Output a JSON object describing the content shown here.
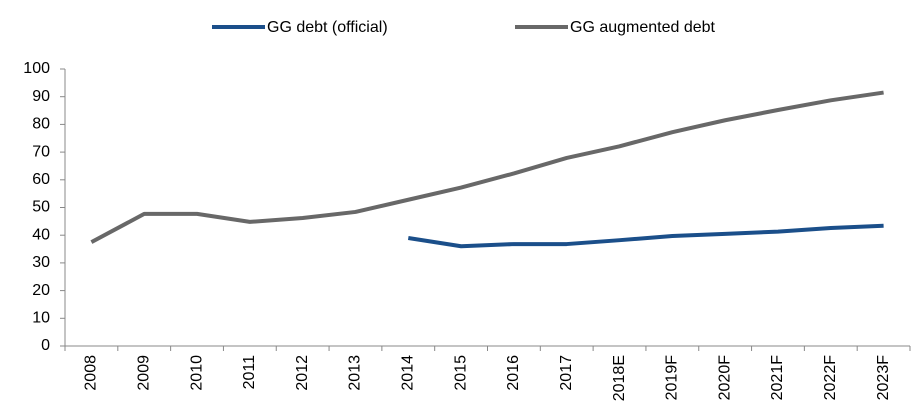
{
  "chart_data": {
    "type": "line",
    "categories": [
      "2008",
      "2009",
      "2010",
      "2011",
      "2012",
      "2013",
      "2014",
      "2015",
      "2016",
      "2017",
      "2018E",
      "2019F",
      "2020F",
      "2021F",
      "2022F",
      "2023F"
    ],
    "series": [
      {
        "name": "GG debt (official)",
        "color": "#1b4f8a",
        "values": [
          null,
          null,
          null,
          null,
          null,
          null,
          39,
          36,
          36.8,
          36.8,
          38.2,
          39.7,
          40.5,
          41.3,
          42.6,
          43.4
        ]
      },
      {
        "name": "GG augmented debt",
        "color": "#686868",
        "values": [
          37.5,
          47.7,
          47.7,
          44.8,
          46.2,
          48.4,
          52.8,
          57.2,
          62.3,
          67.9,
          72.1,
          77.2,
          81.5,
          85.2,
          88.7,
          91.5
        ]
      }
    ],
    "ylim": [
      0,
      100
    ],
    "yticks": [
      0,
      10,
      20,
      30,
      40,
      50,
      60,
      70,
      80,
      90,
      100
    ],
    "legend": "top",
    "grid": false
  }
}
